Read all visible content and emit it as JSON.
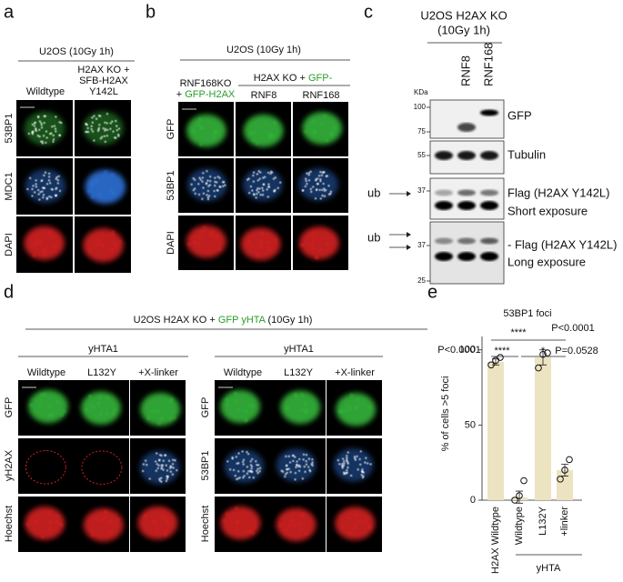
{
  "panel_a": {
    "label": "a",
    "title": "U2OS (10Gy 1h)",
    "columns": [
      [
        "Wildtype"
      ],
      [
        "H2AX KO +",
        "SFB-H2AX",
        "Y142L"
      ]
    ],
    "rows": [
      "53BP1",
      "MDC1",
      "DAPI"
    ],
    "scale_bar": "10um"
  },
  "panel_b": {
    "label": "b",
    "title": "U2OS (10Gy 1h)",
    "left_line1": "RNF168KO",
    "left_line2_prefix": "+ ",
    "left_line2_green": "GFP-H2AX",
    "group_prefix": "H2AX KO + ",
    "group_green": "GFP-",
    "columns": [
      "RNF8",
      "RNF168"
    ],
    "rows": [
      "GFP",
      "53BP1",
      "DAPI"
    ],
    "scale_bar": "10um"
  },
  "panel_c": {
    "label": "c",
    "title": [
      "U2OS H2AX KO",
      "(10Gy 1h)"
    ],
    "lanes": [
      "RNF8",
      "RNF168"
    ],
    "kda_label": "KDa",
    "blots": [
      {
        "markers": [
          100,
          75
        ],
        "labels": [
          "GFP"
        ]
      },
      {
        "markers": [
          55
        ],
        "labels": [
          "Tubulin"
        ]
      },
      {
        "markers": [
          37
        ],
        "labels": [
          "Flag (H2AX Y142L)",
          "Short exposure"
        ],
        "ub": "ub"
      },
      {
        "markers": [
          37,
          25
        ],
        "labels": [
          "- Flag (H2AX Y142L)",
          "Long exposure"
        ],
        "ub": "ub"
      }
    ]
  },
  "panel_d": {
    "label": "d",
    "title_prefix": "U2OS H2AX KO + ",
    "title_green": "GFP yHTA",
    "title_suffix": " (10Gy 1h)",
    "scale_bar": "10um",
    "groups": [
      {
        "name": "yHTA1",
        "columns": [
          "Wildtype",
          "L132Y",
          "+X-linker"
        ],
        "rows": [
          "GFP",
          "yH2AX",
          "Hoechst"
        ]
      },
      {
        "name": "yHTA1",
        "columns": [
          "Wildtype",
          "L132Y",
          "+X-linker"
        ],
        "rows": [
          "GFP",
          "53BP1",
          "Hoechst"
        ]
      }
    ]
  },
  "chart_data": {
    "type": "bar",
    "label": "e",
    "title": "53BP1 foci",
    "y_label": "% of cells >5 foci",
    "categories": [
      "H2AX Wildtype",
      "Wildtype",
      "L132Y",
      "+linker"
    ],
    "group_label": "yHTA",
    "values": [
      92,
      2,
      95,
      20
    ],
    "errors": [
      2,
      4,
      5,
      4
    ],
    "points": [
      [
        90,
        93,
        95
      ],
      [
        0,
        3,
        13
      ],
      [
        88,
        97,
        98
      ],
      [
        14,
        20,
        27
      ]
    ],
    "color": "#ece3c1",
    "ylim": [
      0,
      115
    ],
    "yticks": [
      0,
      50,
      100
    ],
    "annotations": [
      "P<0.0001",
      "****",
      "****",
      "P<0.0001",
      "*",
      "P=0.0528"
    ]
  }
}
